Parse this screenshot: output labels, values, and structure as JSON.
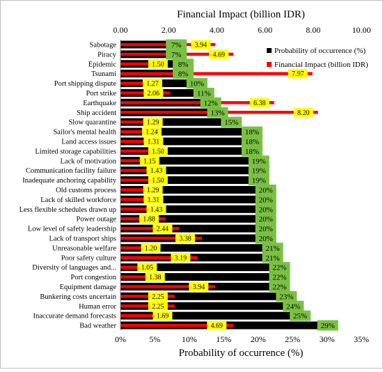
{
  "chart_data": {
    "type": "bar",
    "title": "",
    "top_axis": {
      "label": "Financial Impact (billion IDR)",
      "range": [
        0,
        10
      ],
      "ticks": [
        "0.00",
        "2.00",
        "4.00",
        "6.00",
        "8.00",
        "10.00"
      ]
    },
    "bottom_axis": {
      "label": "Probability of occurrence (%)",
      "range": [
        0,
        35
      ],
      "ticks": [
        "0%",
        "5%",
        "10%",
        "15%",
        "20%",
        "25%",
        "30%",
        "35%"
      ]
    },
    "legend": {
      "placement": "top-right",
      "entries": [
        "Probability of occurrence (%)",
        "Financial Impact (billion IDR)"
      ]
    },
    "grid": false,
    "colors": {
      "probability_bar": "#000000",
      "impact_bar": "#ff0000",
      "probability_label_bg": "#7ac143",
      "impact_label_bg": "#ffff00"
    },
    "categories": [
      "Sabotage",
      "Piracy",
      "Epidemic",
      "Tsunami",
      "Port shipping dispute",
      "Port strike",
      "Earthquake",
      "Ship accident",
      "Slow quarantine",
      "Sailor's mental health",
      "Land access issues",
      "Limited storage capabilities",
      "Lack of motivation",
      "Communication facility failure",
      "Inadequate anchoring capability",
      "Old customs process",
      "Lack of skilled workforce",
      "Less flexible schedules drawn up",
      "Power outage",
      "Low level of safety leadership",
      "Lack of transport ships",
      "Unreasonable welfare",
      "Poor safety culture",
      "Diversity of languages and...",
      "Port congestion",
      "Equipment damage",
      "Bunkering costs uncertain",
      "Human error",
      "Inaccurate demand forecasts",
      "Bad weather"
    ],
    "series": [
      {
        "name": "Probability of occurrence (%)",
        "axis": "bottom",
        "values": [
          7,
          7,
          8,
          8,
          10,
          11,
          12,
          13,
          15,
          18,
          18,
          18,
          19,
          19,
          19,
          20,
          20,
          20,
          20,
          20,
          20,
          21,
          21,
          22,
          22,
          22,
          23,
          24,
          25,
          29
        ],
        "labels": [
          "7%",
          "7%",
          "8%",
          "8%",
          "10%",
          "11%",
          "12%",
          "13%",
          "15%",
          "18%",
          "18%",
          "18%",
          "19%",
          "19%",
          "19%",
          "20%",
          "20%",
          "20%",
          "20%",
          "20%",
          "20%",
          "21%",
          "21%",
          "22%",
          "22%",
          "22%",
          "23%",
          "24%",
          "25%",
          "29%"
        ]
      },
      {
        "name": "Financial Impact (billion IDR)",
        "axis": "top",
        "values": [
          3.94,
          4.69,
          1.5,
          7.97,
          1.27,
          2.06,
          6.38,
          8.2,
          1.29,
          1.24,
          1.31,
          1.5,
          1.15,
          1.43,
          1.5,
          1.29,
          1.31,
          1.43,
          1.88,
          2.44,
          3.38,
          1.2,
          3.19,
          1.05,
          1.38,
          3.94,
          2.25,
          2.25,
          1.69,
          4.69
        ],
        "labels": [
          "3.94",
          "4.69",
          "1.50",
          "7.97",
          "1.27",
          "2.06",
          "6.38",
          "8.20",
          "1.29",
          "1.24",
          "1.31",
          "1.50",
          "1.15",
          "1.43",
          "1.50",
          "1.29",
          "1.31",
          "1.43",
          "1.88",
          "2.44",
          "3.38",
          "1.20",
          "3.19",
          "1.05",
          "1.38",
          "3.94",
          "2.25",
          "2.25",
          "1.69",
          "4.69"
        ]
      }
    ]
  }
}
